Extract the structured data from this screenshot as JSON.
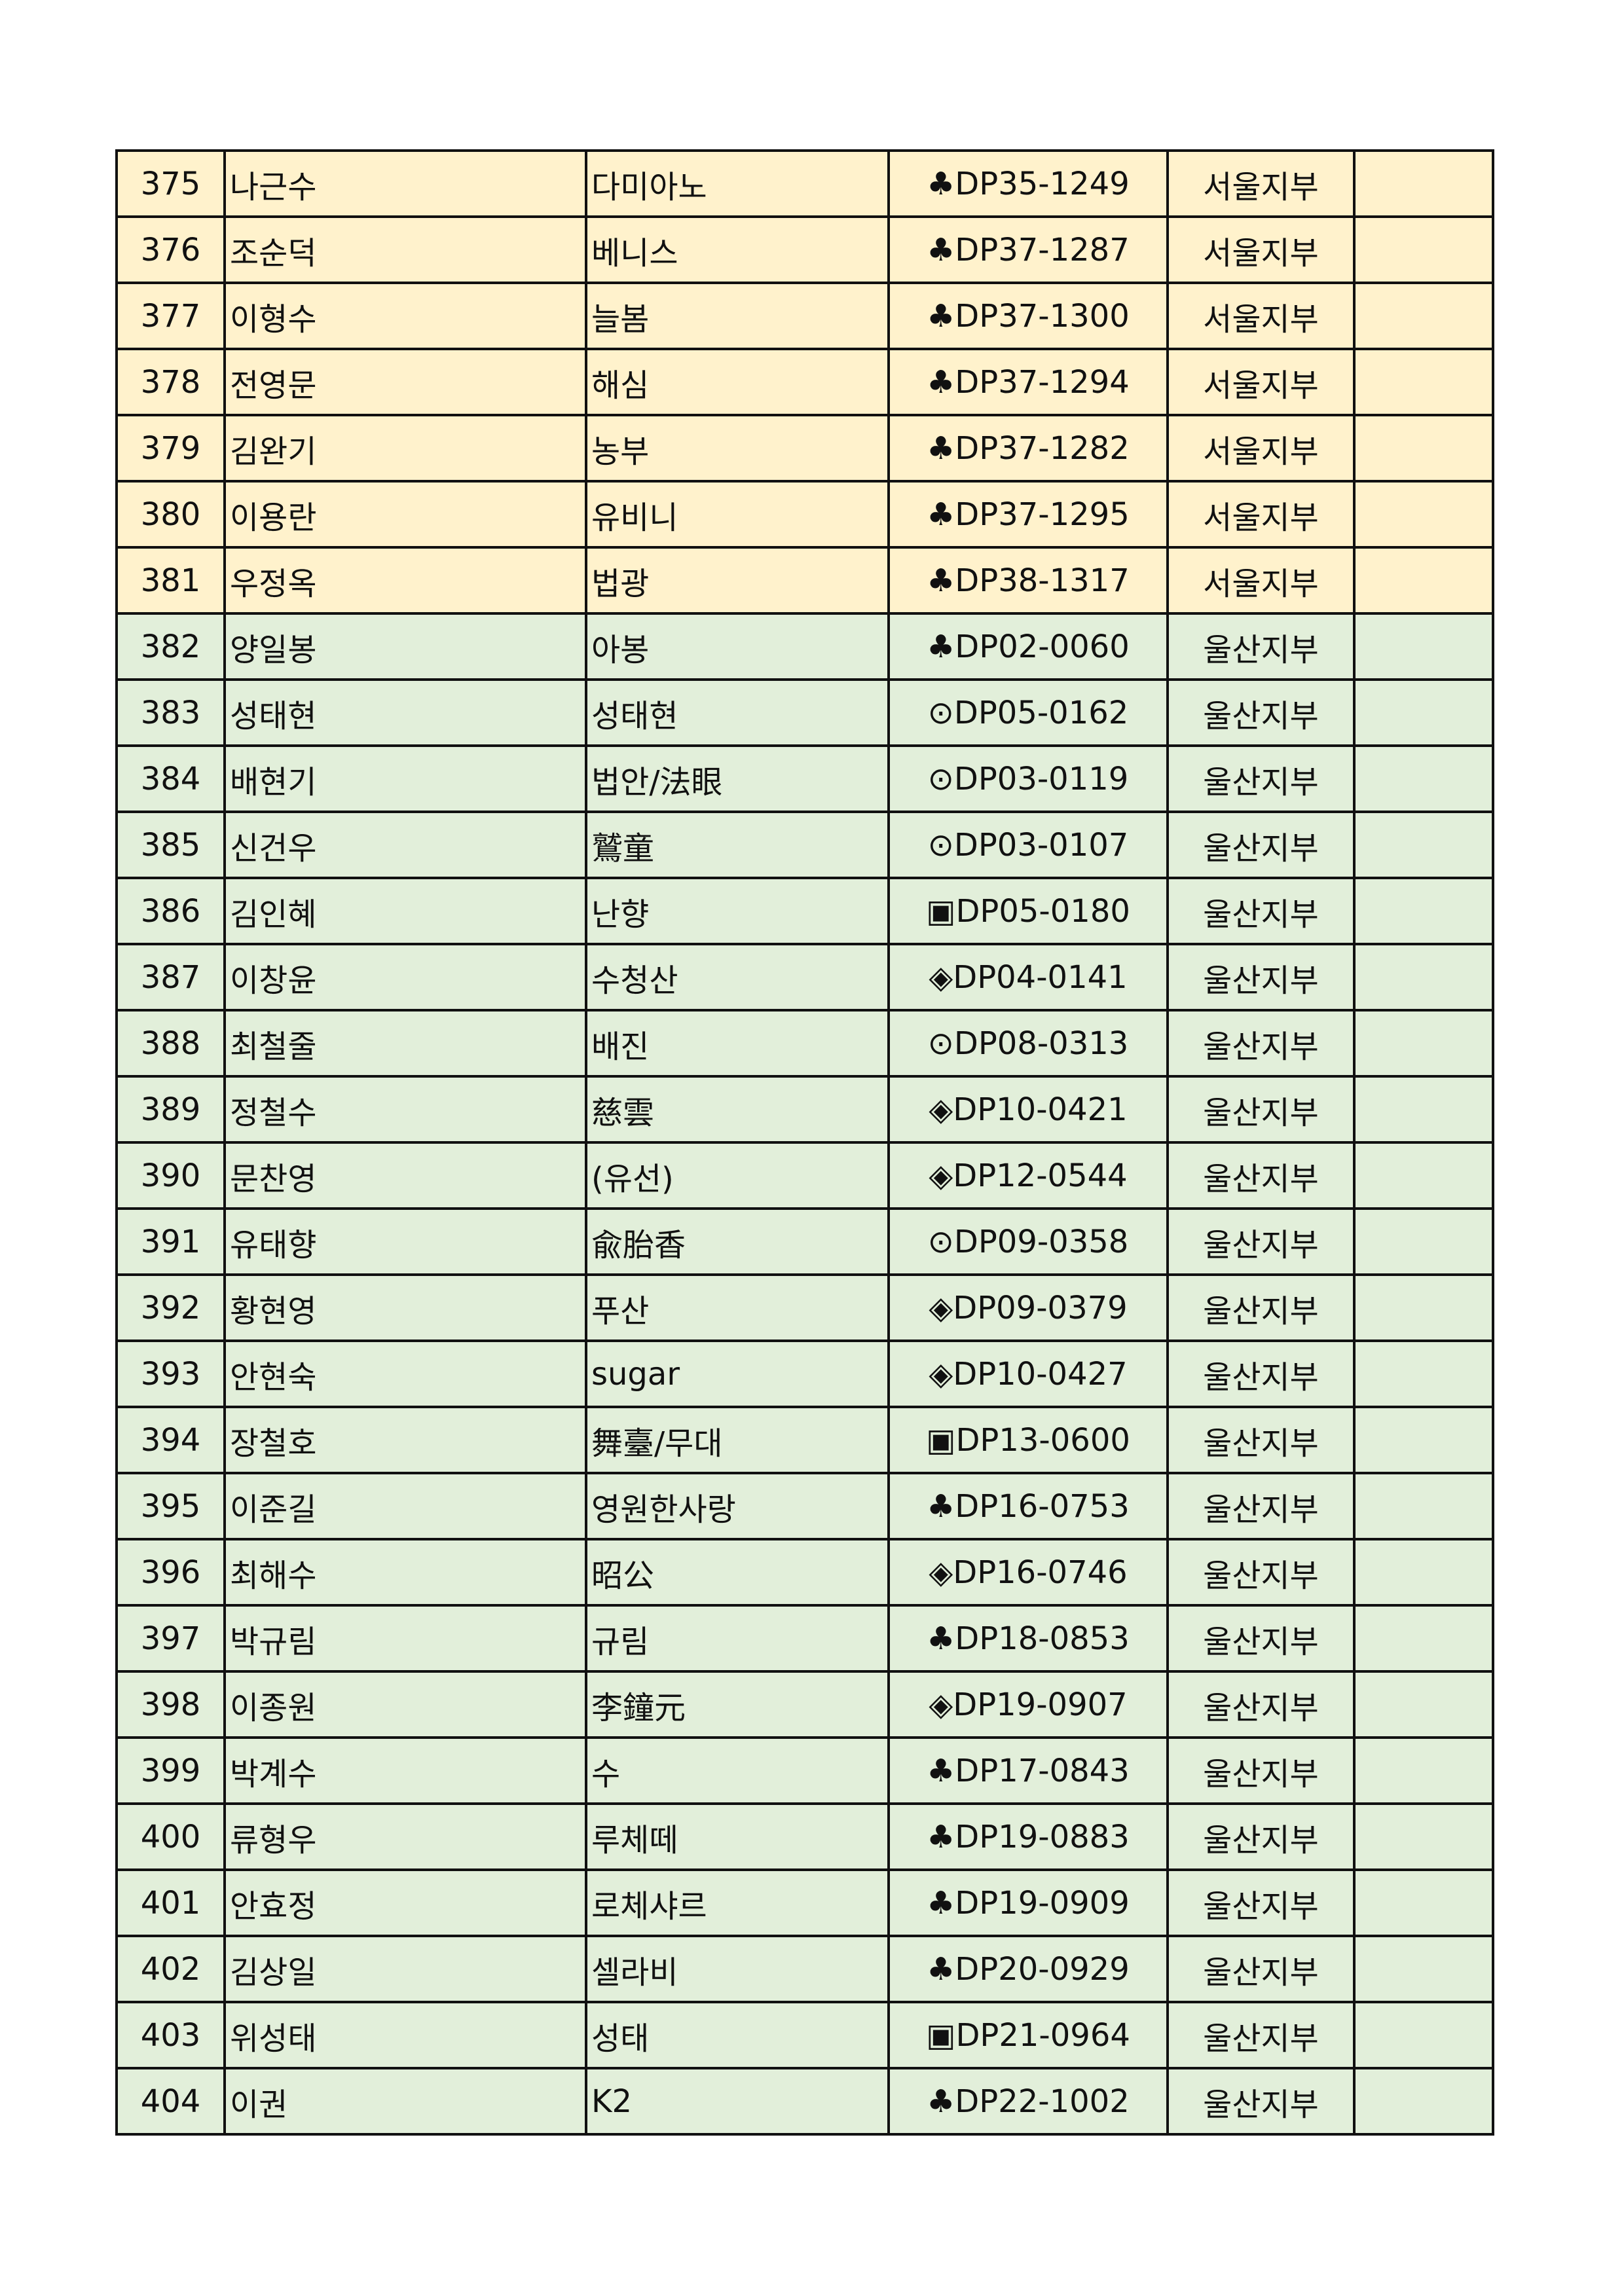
{
  "colors": {
    "seoul_row": "#FFF2CC",
    "ulsan_row": "#E2EFDA",
    "border": "#111111"
  },
  "rows": [
    {
      "no": "375",
      "name": "나근수",
      "nickname": "다미아노",
      "code": "♣DP35-1249",
      "branch": "서울지부",
      "note": "",
      "group": "seoul"
    },
    {
      "no": "376",
      "name": "조순덕",
      "nickname": "베니스",
      "code": "♣DP37-1287",
      "branch": "서울지부",
      "note": "",
      "group": "seoul"
    },
    {
      "no": "377",
      "name": "이형수",
      "nickname": "늘봄",
      "code": "♣DP37-1300",
      "branch": "서울지부",
      "note": "",
      "group": "seoul"
    },
    {
      "no": "378",
      "name": "전영문",
      "nickname": "해심",
      "code": "♣DP37-1294",
      "branch": "서울지부",
      "note": "",
      "group": "seoul"
    },
    {
      "no": "379",
      "name": "김완기",
      "nickname": "농부",
      "code": "♣DP37-1282",
      "branch": "서울지부",
      "note": "",
      "group": "seoul"
    },
    {
      "no": "380",
      "name": "이용란",
      "nickname": "유비니",
      "code": "♣DP37-1295",
      "branch": "서울지부",
      "note": "",
      "group": "seoul"
    },
    {
      "no": "381",
      "name": "우정옥",
      "nickname": "법광",
      "code": "♣DP38-1317",
      "branch": "서울지부",
      "note": "",
      "group": "seoul"
    },
    {
      "no": "382",
      "name": "양일봉",
      "nickname": "아봉",
      "code": "♣DP02-0060",
      "branch": "울산지부",
      "note": "",
      "group": "ulsan"
    },
    {
      "no": "383",
      "name": "성태현",
      "nickname": "성태현",
      "code": "⊙DP05-0162",
      "branch": "울산지부",
      "note": "",
      "group": "ulsan"
    },
    {
      "no": "384",
      "name": "배현기",
      "nickname": "법안/法眼",
      "code": "⊙DP03-0119",
      "branch": "울산지부",
      "note": "",
      "group": "ulsan"
    },
    {
      "no": "385",
      "name": "신건우",
      "nickname": "鷲童",
      "code": "⊙DP03-0107",
      "branch": "울산지부",
      "note": "",
      "group": "ulsan"
    },
    {
      "no": "386",
      "name": "김인혜",
      "nickname": "난향",
      "code": "▣DP05-0180",
      "branch": "울산지부",
      "note": "",
      "group": "ulsan"
    },
    {
      "no": "387",
      "name": "이창윤",
      "nickname": "수청산",
      "code": "◈DP04-0141",
      "branch": "울산지부",
      "note": "",
      "group": "ulsan"
    },
    {
      "no": "388",
      "name": "최철줄",
      "nickname": "배진",
      "code": "⊙DP08-0313",
      "branch": "울산지부",
      "note": "",
      "group": "ulsan"
    },
    {
      "no": "389",
      "name": "정철수",
      "nickname": "慈雲",
      "code": "◈DP10-0421",
      "branch": "울산지부",
      "note": "",
      "group": "ulsan"
    },
    {
      "no": "390",
      "name": "문찬영",
      "nickname": "(유선)",
      "code": "◈DP12-0544",
      "branch": "울산지부",
      "note": "",
      "group": "ulsan"
    },
    {
      "no": "391",
      "name": "유태향",
      "nickname": "兪胎香",
      "code": "⊙DP09-0358",
      "branch": "울산지부",
      "note": "",
      "group": "ulsan"
    },
    {
      "no": "392",
      "name": "황현영",
      "nickname": "푸산",
      "code": "◈DP09-0379",
      "branch": "울산지부",
      "note": "",
      "group": "ulsan"
    },
    {
      "no": "393",
      "name": "안현숙",
      "nickname": "sugar",
      "code": "◈DP10-0427",
      "branch": "울산지부",
      "note": "",
      "group": "ulsan"
    },
    {
      "no": "394",
      "name": "장철호",
      "nickname": "舞臺/무대",
      "code": "▣DP13-0600",
      "branch": "울산지부",
      "note": "",
      "group": "ulsan"
    },
    {
      "no": "395",
      "name": "이준길",
      "nickname": "영원한사랑",
      "code": "♣DP16-0753",
      "branch": "울산지부",
      "note": "",
      "group": "ulsan"
    },
    {
      "no": "396",
      "name": "최해수",
      "nickname": "昭公",
      "code": "◈DP16-0746",
      "branch": "울산지부",
      "note": "",
      "group": "ulsan"
    },
    {
      "no": "397",
      "name": "박규림",
      "nickname": "규림",
      "code": "♣DP18-0853",
      "branch": "울산지부",
      "note": "",
      "group": "ulsan"
    },
    {
      "no": "398",
      "name": "이종원",
      "nickname": "李鐘元",
      "code": "◈DP19-0907",
      "branch": "울산지부",
      "note": "",
      "group": "ulsan"
    },
    {
      "no": "399",
      "name": "박계수",
      "nickname": "수",
      "code": "♣DP17-0843",
      "branch": "울산지부",
      "note": "",
      "group": "ulsan"
    },
    {
      "no": "400",
      "name": "류형우",
      "nickname": "루체떼",
      "code": "♣DP19-0883",
      "branch": "울산지부",
      "note": "",
      "group": "ulsan"
    },
    {
      "no": "401",
      "name": "안효정",
      "nickname": "로체샤르",
      "code": "♣DP19-0909",
      "branch": "울산지부",
      "note": "",
      "group": "ulsan"
    },
    {
      "no": "402",
      "name": "김상일",
      "nickname": "셀라비",
      "code": "♣DP20-0929",
      "branch": "울산지부",
      "note": "",
      "group": "ulsan"
    },
    {
      "no": "403",
      "name": "위성태",
      "nickname": "성태",
      "code": "▣DP21-0964",
      "branch": "울산지부",
      "note": "",
      "group": "ulsan"
    },
    {
      "no": "404",
      "name": "이권",
      "nickname": "K2",
      "code": "♣DP22-1002",
      "branch": "울산지부",
      "note": "",
      "group": "ulsan"
    }
  ]
}
